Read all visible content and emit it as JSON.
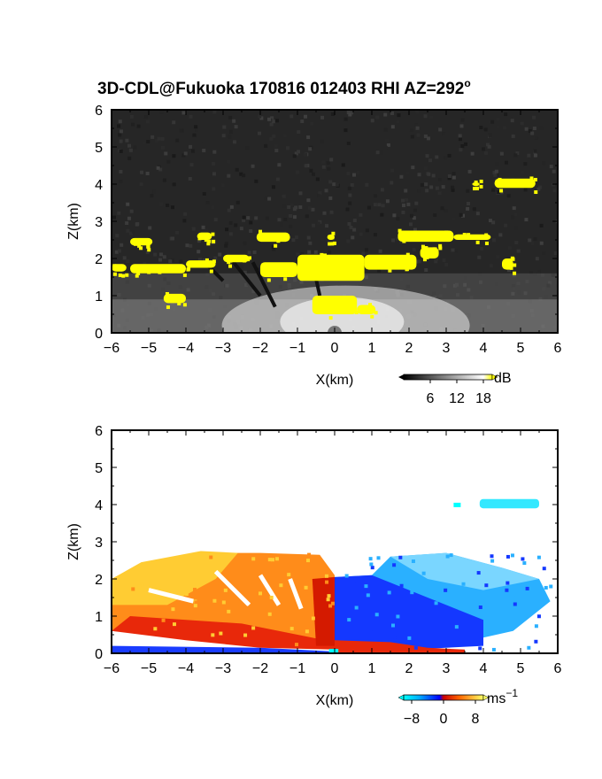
{
  "title_main": "3D-CDL@Fukuoka 170816 012403 RHI AZ=292",
  "title_sup": "o",
  "chart_data": [
    {
      "type": "heatmap",
      "variable": "backscatter intensity",
      "xlabel": "X(km)",
      "ylabel": "Z(km)",
      "xlim": [
        -6,
        6
      ],
      "ylim": [
        0,
        6
      ],
      "x_ticks": [
        "-6",
        "-5",
        "-4",
        "-3",
        "-2",
        "-1",
        "0",
        "1",
        "2",
        "3",
        "4",
        "5",
        "6"
      ],
      "y_ticks": [
        "0",
        "1",
        "2",
        "3",
        "4",
        "5",
        "6"
      ],
      "colorbar": {
        "unit": "dB",
        "ticks": [
          "6",
          "12",
          "18"
        ],
        "range": [
          0,
          20
        ],
        "colors": [
          "#000000",
          "#ffffff",
          "#ffff00"
        ]
      },
      "features": [
        {
          "label": "strong echo layer",
          "x_range": [
            -6,
            5
          ],
          "z_range": [
            1.5,
            2.7
          ],
          "level": "above 18 dB"
        },
        {
          "label": "elevated aerosol",
          "x_range": [
            3.5,
            5.5
          ],
          "z_range": [
            3.9,
            4.1
          ],
          "level": "above 18 dB"
        }
      ]
    },
    {
      "type": "heatmap",
      "variable": "Doppler velocity",
      "xlabel": "X(km)",
      "ylabel": "Z(km)",
      "xlim": [
        -6,
        6
      ],
      "ylim": [
        0,
        6
      ],
      "x_ticks": [
        "-6",
        "-5",
        "-4",
        "-3",
        "-2",
        "-1",
        "0",
        "1",
        "2",
        "3",
        "4",
        "5",
        "6"
      ],
      "y_ticks": [
        "0",
        "1",
        "2",
        "3",
        "4",
        "5",
        "6"
      ],
      "colorbar": {
        "unit_base": "ms",
        "unit_exp": "-1",
        "ticks": [
          "-8",
          "0",
          "8"
        ],
        "range": [
          -10,
          10
        ]
      },
      "features": [
        {
          "label": "positive velocities",
          "x_range": [
            -6,
            0
          ],
          "z_range": [
            0,
            2.8
          ],
          "value_range": [
            2,
            9
          ]
        },
        {
          "label": "negative velocities",
          "x_range": [
            0,
            6
          ],
          "z_range": [
            0,
            2.7
          ],
          "value_range": [
            -9,
            -2
          ]
        },
        {
          "label": "elevated aerosol",
          "x_range": [
            3.2,
            5.5
          ],
          "z_range": [
            3.9,
            4.2
          ],
          "value_range": [
            -9,
            -8
          ]
        }
      ]
    }
  ]
}
